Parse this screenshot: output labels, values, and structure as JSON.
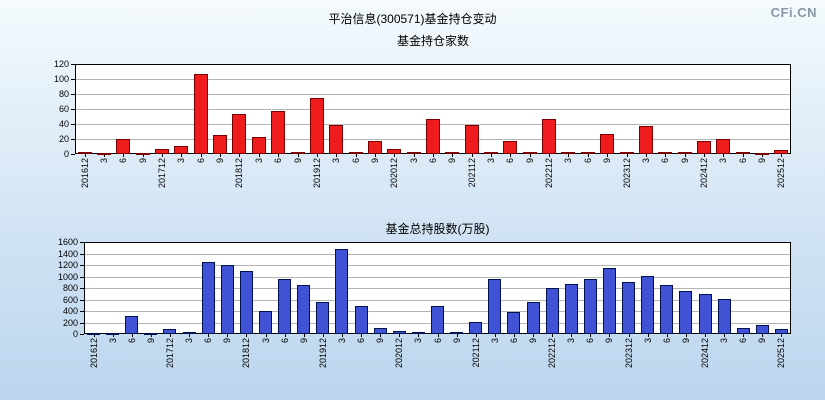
{
  "page": {
    "title": "平治信息(300571)基金持仓变动",
    "logo": "CFi.CN"
  },
  "chart_data": [
    {
      "type": "bar",
      "title": "基金持仓家数",
      "bar_color": "#ee1c1c",
      "bar_border": "#7a0000",
      "ylim": [
        0,
        120
      ],
      "yticks": [
        0,
        20,
        40,
        60,
        80,
        100,
        120
      ],
      "grid": true,
      "legend": "none",
      "categories": [
        "201612",
        "3",
        "6",
        "9",
        "201712",
        "3",
        "6",
        "9",
        "201812",
        "3",
        "6",
        "9",
        "201912",
        "3",
        "6",
        "9",
        "202012",
        "3",
        "6",
        "9",
        "202112",
        "3",
        "6",
        "9",
        "202212",
        "3",
        "6",
        "9",
        "202312",
        "3",
        "6",
        "9",
        "202412",
        "3",
        "6",
        "9",
        "202512"
      ],
      "values": [
        2,
        1,
        20,
        1,
        7,
        10,
        107,
        25,
        53,
        22,
        57,
        3,
        75,
        38,
        2,
        17,
        7,
        2,
        47,
        3,
        38,
        2,
        17,
        3,
        47,
        3,
        2,
        27,
        2,
        37,
        2,
        2,
        17,
        20,
        2,
        1,
        5
      ]
    },
    {
      "type": "bar",
      "title": "基金总持股数(万股)",
      "bar_color": "#4053d4",
      "bar_border": "#00114f",
      "ylim": [
        0,
        1600
      ],
      "yticks": [
        0,
        200,
        400,
        600,
        800,
        1000,
        1200,
        1400,
        1600
      ],
      "grid": true,
      "legend": "none",
      "categories": [
        "201612",
        "3",
        "6",
        "9",
        "201712",
        "3",
        "6",
        "9",
        "201812",
        "3",
        "6",
        "9",
        "201912",
        "3",
        "6",
        "9",
        "202012",
        "3",
        "6",
        "9",
        "202112",
        "3",
        "6",
        "9",
        "202212",
        "3",
        "6",
        "9",
        "202312",
        "3",
        "6",
        "9",
        "202412",
        "3",
        "6",
        "9",
        "202512"
      ],
      "values": [
        15,
        5,
        310,
        20,
        80,
        30,
        1250,
        1200,
        1100,
        400,
        950,
        850,
        550,
        1480,
        480,
        100,
        50,
        30,
        480,
        30,
        200,
        950,
        380,
        550,
        800,
        870,
        950,
        1150,
        900,
        1000,
        850,
        750,
        700,
        600,
        100,
        150,
        80
      ]
    }
  ]
}
